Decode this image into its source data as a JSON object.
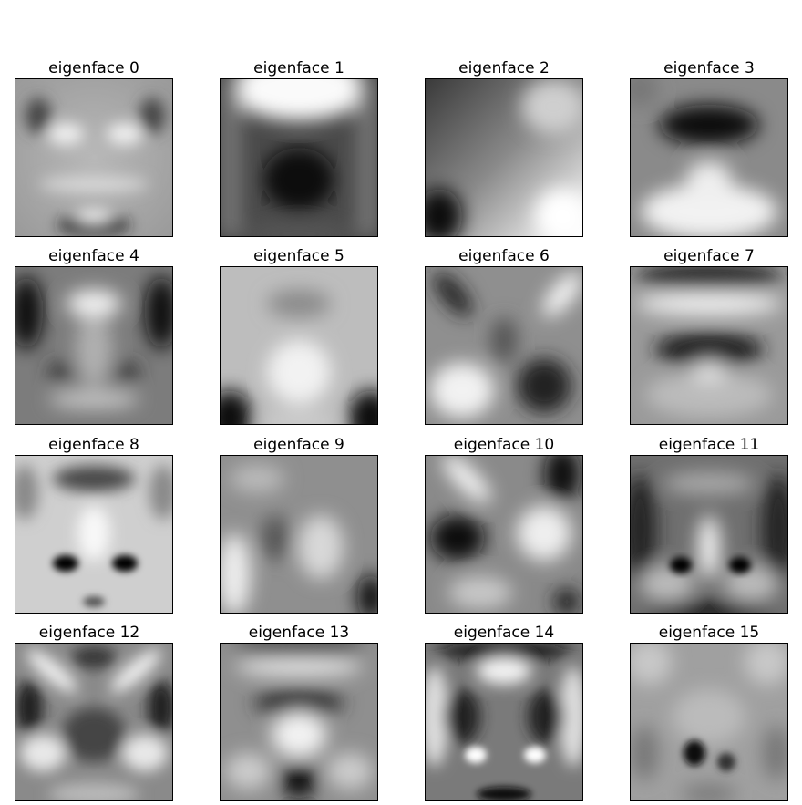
{
  "panels": [
    {
      "title": "eigenface 0"
    },
    {
      "title": "eigenface 1"
    },
    {
      "title": "eigenface 2"
    },
    {
      "title": "eigenface 3"
    },
    {
      "title": "eigenface 4"
    },
    {
      "title": "eigenface 5"
    },
    {
      "title": "eigenface 6"
    },
    {
      "title": "eigenface 7"
    },
    {
      "title": "eigenface 8"
    },
    {
      "title": "eigenface 9"
    },
    {
      "title": "eigenface 10"
    },
    {
      "title": "eigenface 11"
    },
    {
      "title": "eigenface 12"
    },
    {
      "title": "eigenface 13"
    },
    {
      "title": "eigenface 14"
    },
    {
      "title": "eigenface 15"
    }
  ],
  "colormap": "gray"
}
